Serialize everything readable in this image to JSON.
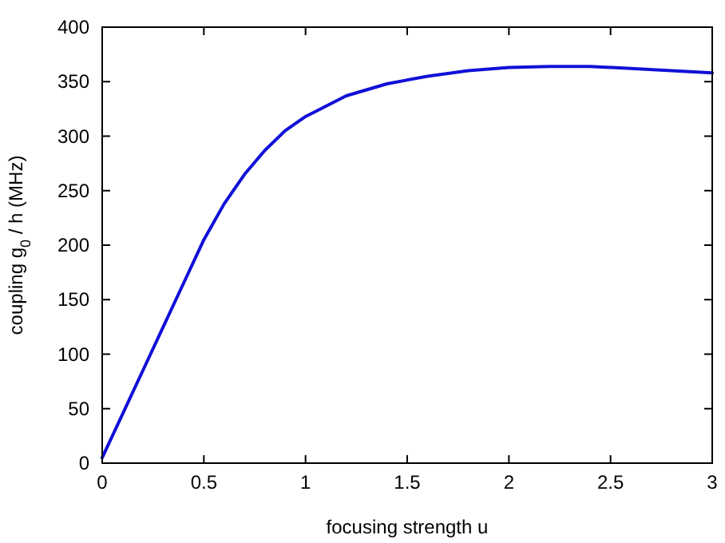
{
  "chart_data": {
    "type": "line",
    "xlabel": "focusing strength u",
    "ylabel": "coupling g$_{0}$ / h (MHz)",
    "xlim": [
      0,
      3
    ],
    "ylim": [
      0,
      400
    ],
    "xticks": [
      0,
      0.5,
      1,
      1.5,
      2,
      2.5,
      3
    ],
    "yticks": [
      0,
      50,
      100,
      150,
      200,
      250,
      300,
      350,
      400
    ],
    "grid": false,
    "series": [
      {
        "color": "#1010d8",
        "x": [
          0,
          0.1,
          0.2,
          0.3,
          0.4,
          0.5,
          0.6,
          0.7,
          0.8,
          0.9,
          1.0,
          1.2,
          1.4,
          1.6,
          1.8,
          2.0,
          2.2,
          2.4,
          2.6,
          2.8,
          3.0
        ],
        "values": [
          5,
          45,
          85,
          125,
          165,
          205,
          238,
          265,
          287,
          305,
          318,
          337,
          348,
          355,
          360,
          363,
          364,
          364,
          362,
          360,
          358
        ]
      }
    ]
  }
}
